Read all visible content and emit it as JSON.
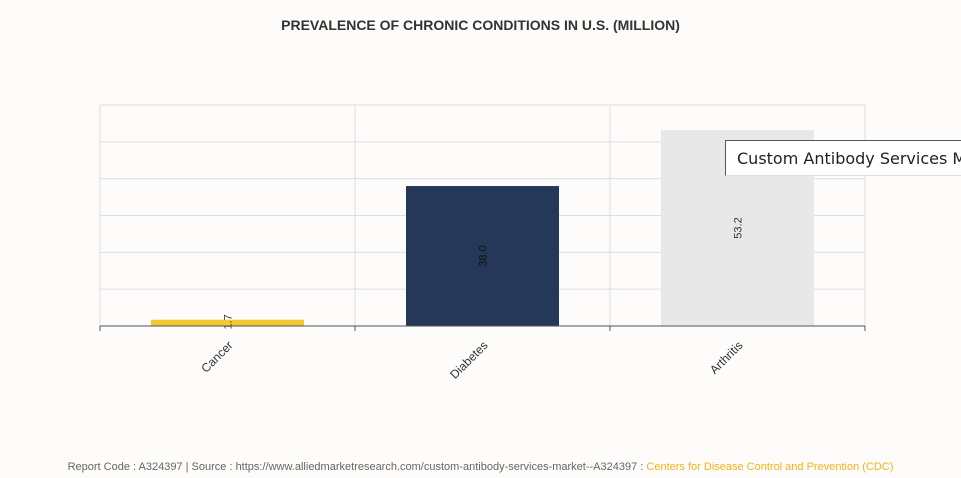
{
  "chart_data": {
    "type": "bar",
    "title": "PREVALENCE OF CHRONIC CONDITIONS IN U.S. (MILLION)",
    "categories": [
      "Cancer",
      "Diabetes",
      "Arthritis"
    ],
    "values": [
      1.7,
      38.0,
      53.2
    ],
    "value_labels": [
      "1.7",
      "38.0",
      "53.2"
    ],
    "colors": [
      "#f5c731",
      "#253859",
      "#e8e8e8"
    ],
    "ylim": [
      0,
      60
    ],
    "grid": true,
    "label_orientation": "vertical",
    "xlabel": "",
    "ylabel": ""
  },
  "tooltip": {
    "text": "Custom Antibody Services M"
  },
  "footer": {
    "report_code": "Report Code : A324397",
    "separator": "|",
    "source": "Source : https://www.alliedmarketresearch.com/custom-antibody-services-market--A324397 :",
    "source_org": "Centers for Disease Control and Prevention (CDC)"
  }
}
